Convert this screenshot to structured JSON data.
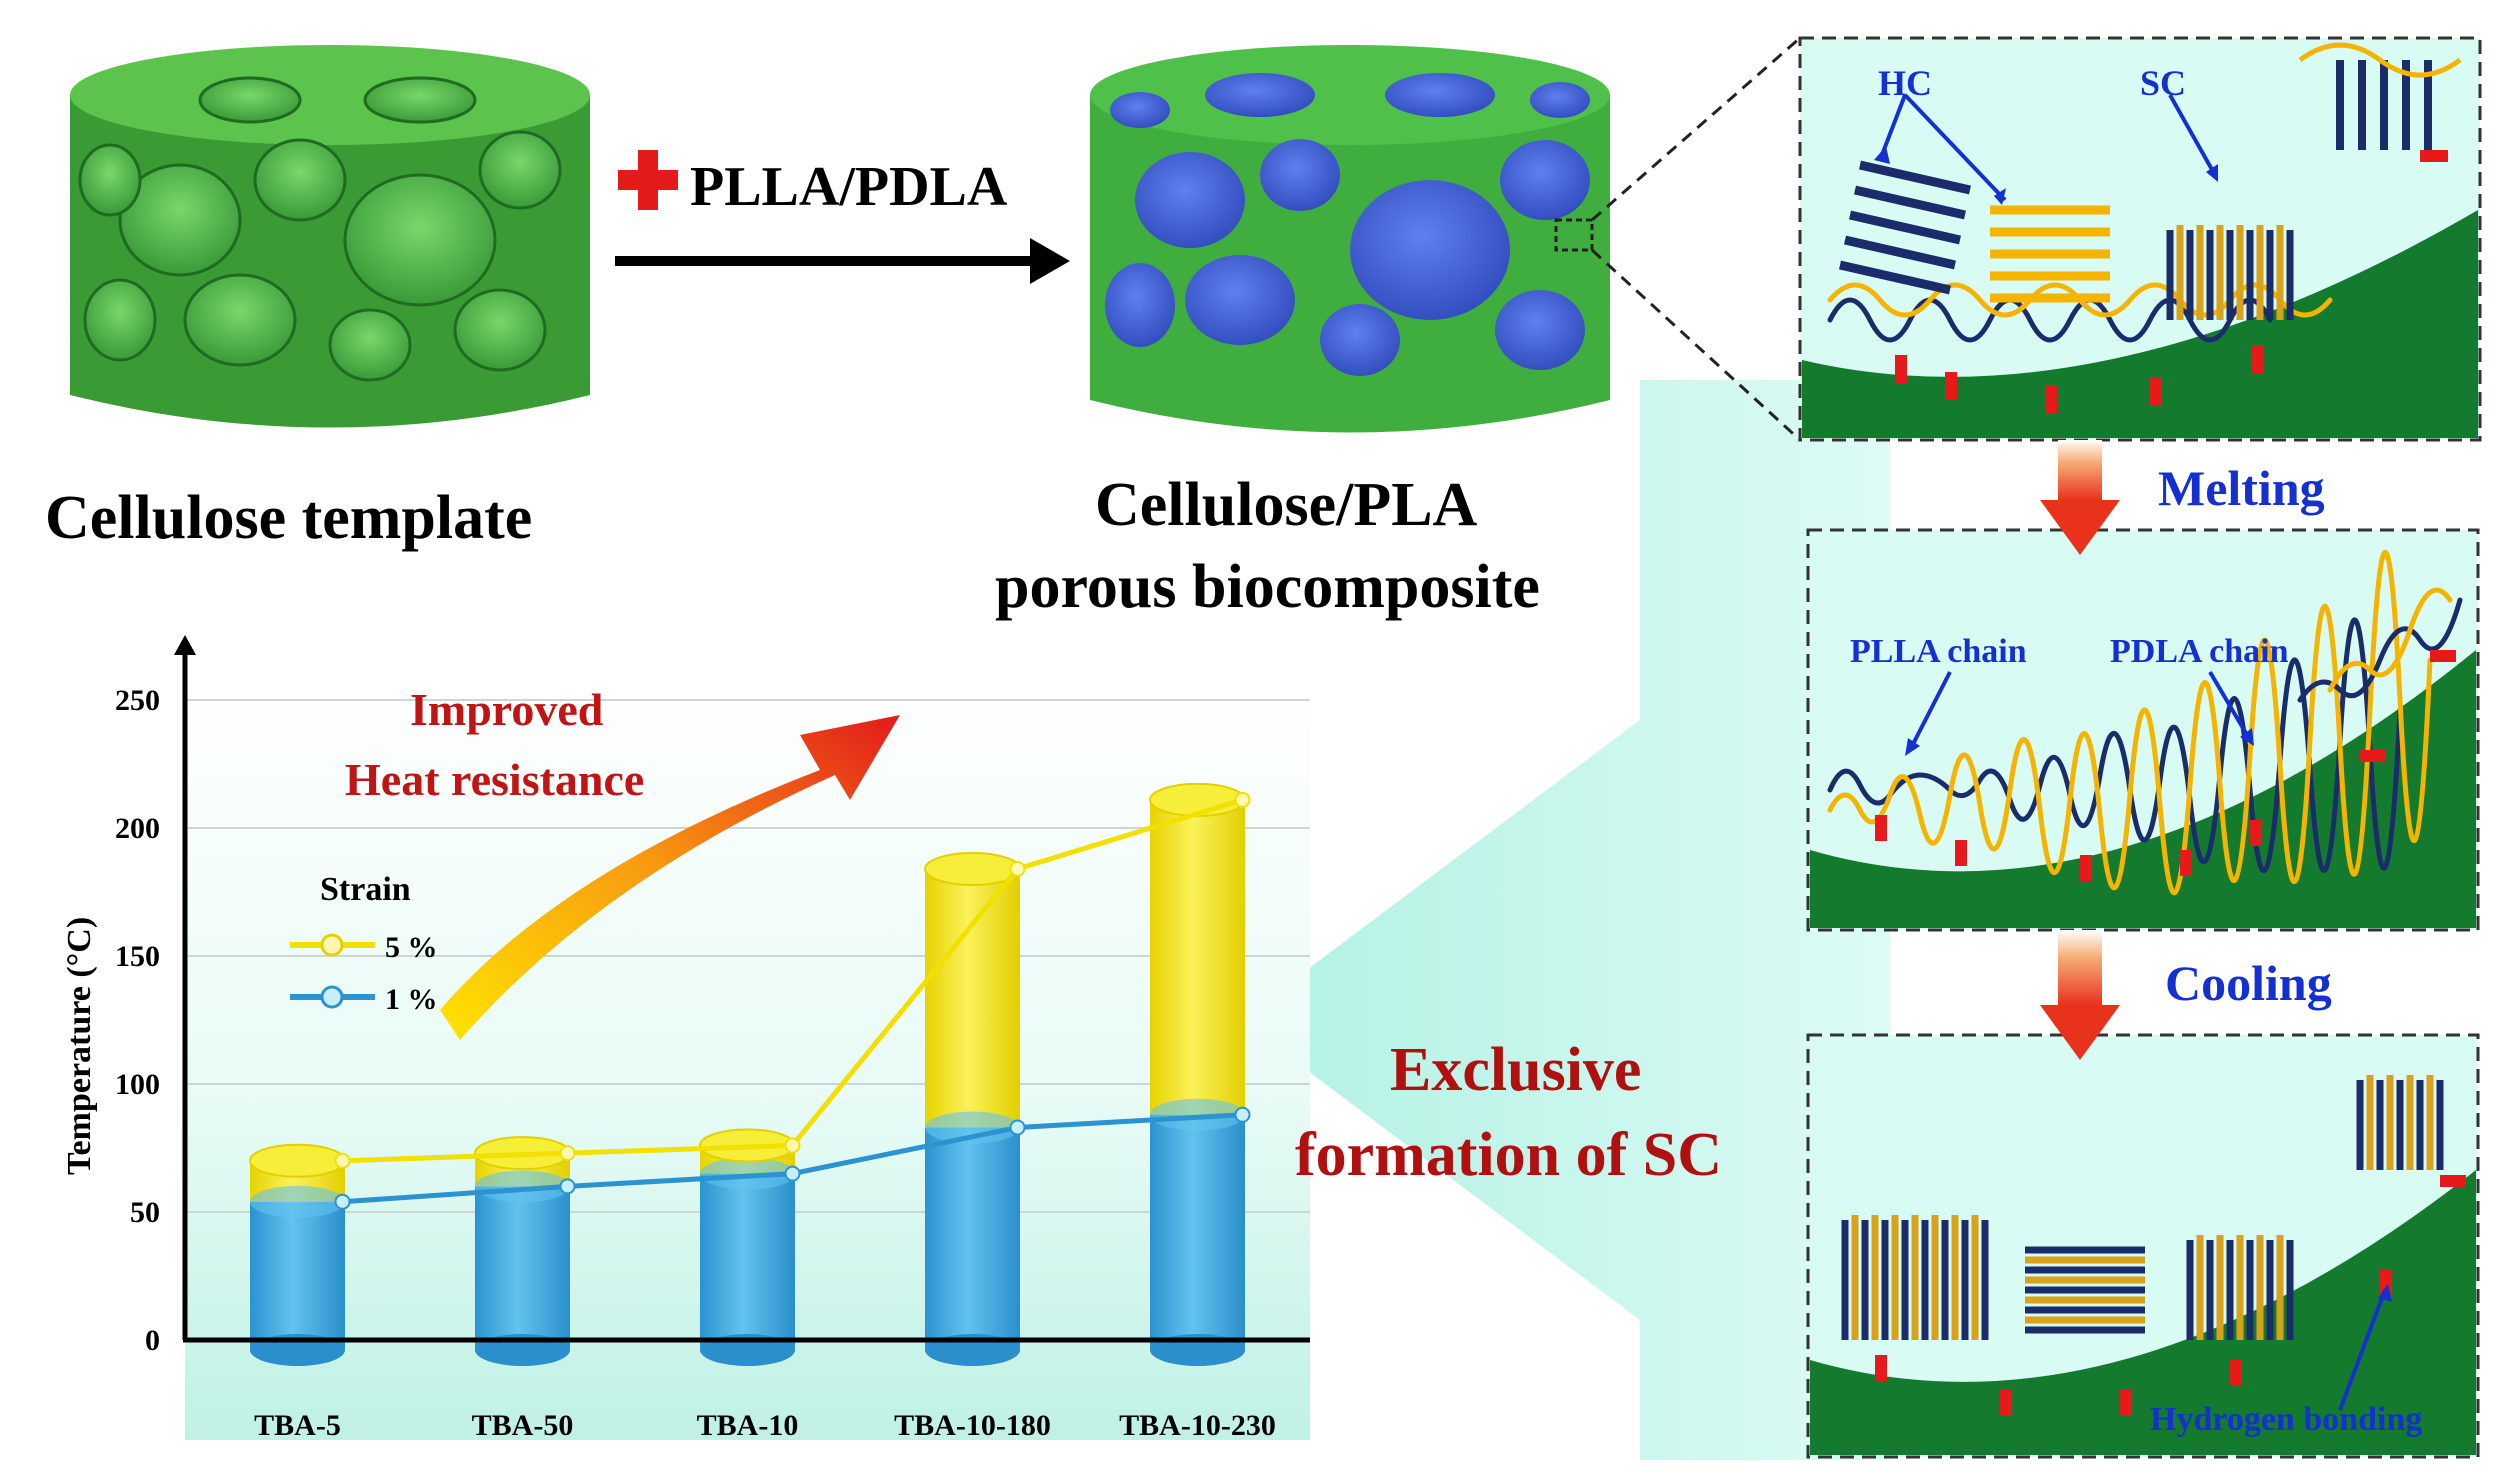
{
  "panels": {
    "template_label": "Cellulose template",
    "composite_label_line1": "Cellulose/PLA",
    "composite_label_line2": "porous biocomposite",
    "additive_label": "PLLA/PDLA"
  },
  "mechanism": {
    "hc_label": "HC",
    "sc_label": "SC",
    "melting_label": "Melting",
    "cooling_label": "Cooling",
    "plla_chain_label": "PLLA chain",
    "pdla_chain_label": "PDLA chain",
    "hydrogen_bonding_label": "Hydrogen bonding",
    "exclusive_line1": "Exclusive",
    "exclusive_line2": "formation of SC"
  },
  "chart_data": {
    "type": "bar",
    "categories": [
      "TBA-5",
      "TBA-50",
      "TBA-10",
      "TBA-10-180",
      "TBA-10-230"
    ],
    "ylabel": "Temperature (°C)",
    "ylim": [
      0,
      250
    ],
    "yticks": [
      "0",
      "50",
      "100",
      "150",
      "200",
      "250"
    ],
    "legend_title": "Strain",
    "annotation_line1": "Improved",
    "annotation_line2": "Heat resistance",
    "series": [
      {
        "name": "5 %",
        "values": [
          70,
          73,
          76,
          184,
          211
        ],
        "color": "#f2e000"
      },
      {
        "name": "1 %",
        "values": [
          54,
          60,
          65,
          83,
          88
        ],
        "color": "#35a3dc"
      }
    ]
  },
  "colors": {
    "cellulose_green": "#3fae3f",
    "pla_blue": "#3c5fd6",
    "dark_green": "#137a2e",
    "label_blue": "#1430d0",
    "label_red": "#b01010",
    "plus_red": "#e31b1b",
    "teal_bg": "#bff3e9",
    "chain_navy": "#1b2c6b",
    "chain_gold": "#f4b400",
    "bond_red": "#e8191a"
  }
}
